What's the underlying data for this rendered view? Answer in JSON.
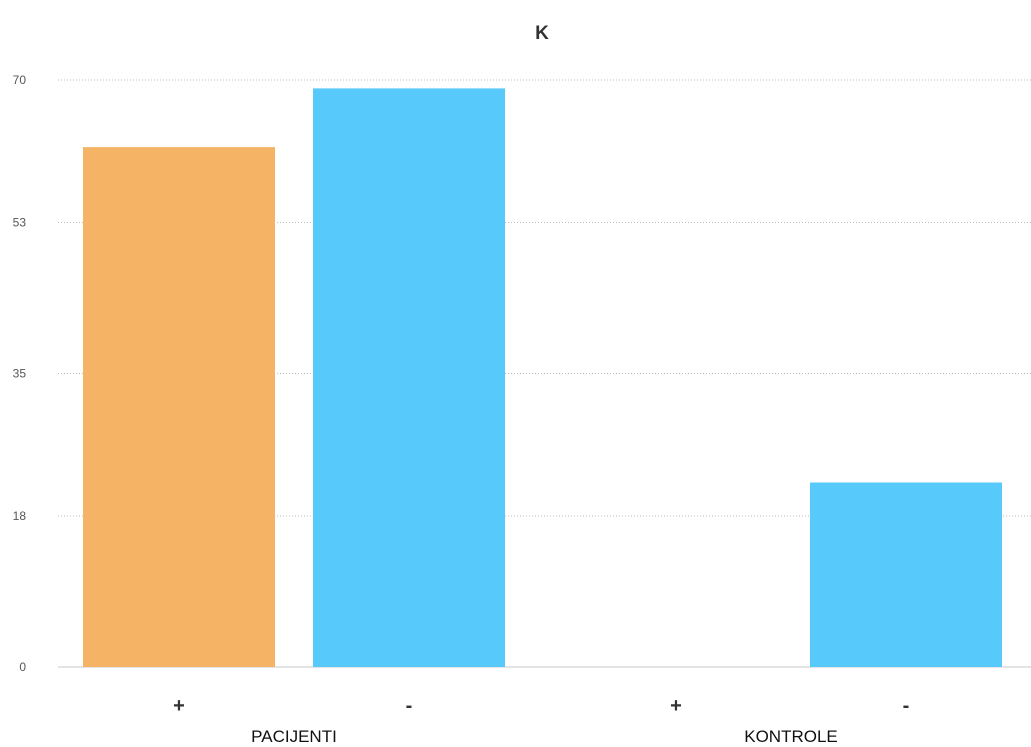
{
  "chart_data": {
    "type": "bar",
    "title": "K",
    "xlabel": "",
    "ylabel": "",
    "ylim": [
      0,
      70
    ],
    "yticks": [
      "0",
      "18",
      "35",
      "53",
      "70"
    ],
    "grid": true,
    "groups": [
      {
        "label": "PACIJENTI",
        "bars": [
          {
            "label": "+",
            "value": 62,
            "color": "#F5B465"
          },
          {
            "label": "-",
            "value": 69,
            "color": "#58C9FB"
          }
        ]
      },
      {
        "label": "KONTROLE",
        "bars": [
          {
            "label": "+",
            "value": 0,
            "color": "#F5B465"
          },
          {
            "label": "-",
            "value": 22,
            "color": "#58C9FB"
          }
        ]
      }
    ]
  }
}
